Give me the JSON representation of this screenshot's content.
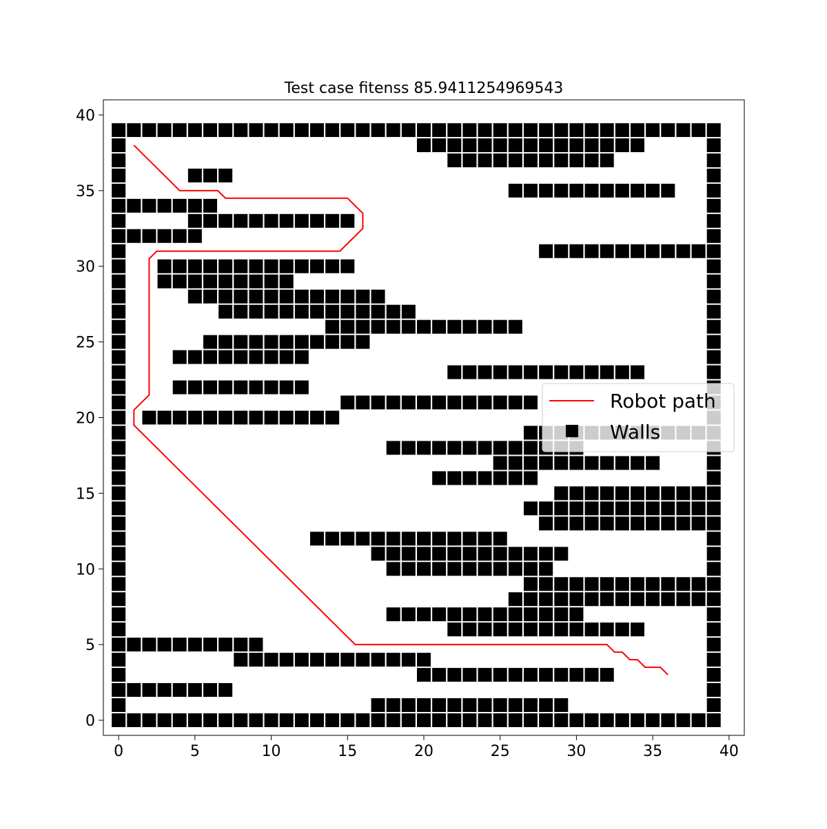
{
  "chart_data": {
    "type": "scatter",
    "title": "Test case fitenss 85.9411254969543",
    "xlabel": "",
    "ylabel": "",
    "xlim": [
      -1,
      41
    ],
    "ylim": [
      -1,
      41
    ],
    "xticks": [
      0,
      5,
      10,
      15,
      20,
      25,
      30,
      35,
      40
    ],
    "yticks": [
      0,
      5,
      10,
      15,
      20,
      25,
      30,
      35,
      40
    ],
    "grid": false,
    "legend": {
      "placement": "center-right",
      "entries": [
        "Robot path",
        "Walls"
      ]
    },
    "colors": {
      "path": "#ff0000",
      "walls": "#000000"
    },
    "series": [
      {
        "name": "Robot path",
        "kind": "line",
        "points": [
          [
            1,
            38
          ],
          [
            4,
            35
          ],
          [
            6.5,
            35
          ],
          [
            7,
            34.5
          ],
          [
            15,
            34.5
          ],
          [
            16,
            33.5
          ],
          [
            16,
            32.5
          ],
          [
            14.5,
            31
          ],
          [
            2.5,
            31
          ],
          [
            2,
            30.5
          ],
          [
            2,
            21.5
          ],
          [
            1,
            20.5
          ],
          [
            1,
            19.5
          ],
          [
            15.5,
            5
          ],
          [
            32,
            5
          ],
          [
            32.5,
            4.5
          ],
          [
            33,
            4.5
          ],
          [
            33.5,
            4
          ],
          [
            34,
            4
          ],
          [
            34.5,
            3.5
          ],
          [
            35.5,
            3.5
          ],
          [
            36,
            3
          ]
        ]
      },
      {
        "name": "Walls",
        "kind": "square-markers",
        "rows": [
          {
            "y": 0,
            "spans": [
              [
                0,
                39
              ]
            ]
          },
          {
            "y": 1,
            "spans": [
              [
                0,
                0
              ],
              [
                17,
                29
              ],
              [
                39,
                39
              ]
            ]
          },
          {
            "y": 2,
            "spans": [
              [
                0,
                7
              ],
              [
                39,
                39
              ]
            ]
          },
          {
            "y": 3,
            "spans": [
              [
                0,
                0
              ],
              [
                20,
                32
              ],
              [
                39,
                39
              ]
            ]
          },
          {
            "y": 4,
            "spans": [
              [
                0,
                0
              ],
              [
                8,
                20
              ],
              [
                39,
                39
              ]
            ]
          },
          {
            "y": 5,
            "spans": [
              [
                0,
                9
              ],
              [
                39,
                39
              ]
            ]
          },
          {
            "y": 6,
            "spans": [
              [
                0,
                0
              ],
              [
                22,
                34
              ],
              [
                39,
                39
              ]
            ]
          },
          {
            "y": 7,
            "spans": [
              [
                0,
                0
              ],
              [
                18,
                30
              ],
              [
                39,
                39
              ]
            ]
          },
          {
            "y": 8,
            "spans": [
              [
                0,
                0
              ],
              [
                26,
                39
              ]
            ]
          },
          {
            "y": 9,
            "spans": [
              [
                0,
                0
              ],
              [
                27,
                39
              ]
            ]
          },
          {
            "y": 10,
            "spans": [
              [
                0,
                0
              ],
              [
                18,
                28
              ],
              [
                39,
                39
              ]
            ]
          },
          {
            "y": 11,
            "spans": [
              [
                0,
                0
              ],
              [
                17,
                29
              ],
              [
                39,
                39
              ]
            ]
          },
          {
            "y": 12,
            "spans": [
              [
                0,
                0
              ],
              [
                13,
                25
              ],
              [
                39,
                39
              ]
            ]
          },
          {
            "y": 13,
            "spans": [
              [
                0,
                0
              ],
              [
                28,
                39
              ]
            ]
          },
          {
            "y": 14,
            "spans": [
              [
                0,
                0
              ],
              [
                27,
                39
              ]
            ]
          },
          {
            "y": 15,
            "spans": [
              [
                0,
                0
              ],
              [
                29,
                39
              ]
            ]
          },
          {
            "y": 16,
            "spans": [
              [
                0,
                0
              ],
              [
                21,
                27
              ],
              [
                39,
                39
              ]
            ]
          },
          {
            "y": 17,
            "spans": [
              [
                0,
                0
              ],
              [
                25,
                35
              ],
              [
                39,
                39
              ]
            ]
          },
          {
            "y": 18,
            "spans": [
              [
                0,
                0
              ],
              [
                18,
                30
              ],
              [
                39,
                39
              ]
            ]
          },
          {
            "y": 19,
            "spans": [
              [
                0,
                0
              ],
              [
                27,
                39
              ]
            ]
          },
          {
            "y": 20,
            "spans": [
              [
                0,
                0
              ],
              [
                2,
                14
              ],
              [
                39,
                39
              ]
            ]
          },
          {
            "y": 21,
            "spans": [
              [
                0,
                0
              ],
              [
                15,
                27
              ],
              [
                39,
                39
              ]
            ]
          },
          {
            "y": 22,
            "spans": [
              [
                0,
                0
              ],
              [
                4,
                12
              ],
              [
                39,
                39
              ]
            ]
          },
          {
            "y": 23,
            "spans": [
              [
                0,
                0
              ],
              [
                22,
                34
              ],
              [
                39,
                39
              ]
            ]
          },
          {
            "y": 24,
            "spans": [
              [
                0,
                0
              ],
              [
                4,
                12
              ],
              [
                39,
                39
              ]
            ]
          },
          {
            "y": 25,
            "spans": [
              [
                0,
                0
              ],
              [
                6,
                16
              ],
              [
                39,
                39
              ]
            ]
          },
          {
            "y": 26,
            "spans": [
              [
                0,
                0
              ],
              [
                14,
                26
              ],
              [
                39,
                39
              ]
            ]
          },
          {
            "y": 27,
            "spans": [
              [
                0,
                0
              ],
              [
                7,
                19
              ],
              [
                39,
                39
              ]
            ]
          },
          {
            "y": 28,
            "spans": [
              [
                0,
                0
              ],
              [
                5,
                17
              ],
              [
                39,
                39
              ]
            ]
          },
          {
            "y": 29,
            "spans": [
              [
                0,
                0
              ],
              [
                3,
                11
              ],
              [
                39,
                39
              ]
            ]
          },
          {
            "y": 30,
            "spans": [
              [
                0,
                0
              ],
              [
                3,
                15
              ],
              [
                39,
                39
              ]
            ]
          },
          {
            "y": 31,
            "spans": [
              [
                0,
                0
              ],
              [
                28,
                39
              ]
            ]
          },
          {
            "y": 32,
            "spans": [
              [
                0,
                5
              ],
              [
                39,
                39
              ]
            ]
          },
          {
            "y": 33,
            "spans": [
              [
                0,
                0
              ],
              [
                5,
                15
              ],
              [
                39,
                39
              ]
            ]
          },
          {
            "y": 34,
            "spans": [
              [
                0,
                6
              ],
              [
                39,
                39
              ]
            ]
          },
          {
            "y": 35,
            "spans": [
              [
                0,
                0
              ],
              [
                26,
                36
              ],
              [
                39,
                39
              ]
            ]
          },
          {
            "y": 36,
            "spans": [
              [
                0,
                0
              ],
              [
                5,
                7
              ],
              [
                39,
                39
              ]
            ]
          },
          {
            "y": 37,
            "spans": [
              [
                0,
                0
              ],
              [
                22,
                32
              ],
              [
                39,
                39
              ]
            ]
          },
          {
            "y": 38,
            "spans": [
              [
                0,
                0
              ],
              [
                20,
                34
              ],
              [
                39,
                39
              ]
            ]
          },
          {
            "y": 39,
            "spans": [
              [
                0,
                39
              ]
            ]
          }
        ]
      }
    ]
  }
}
